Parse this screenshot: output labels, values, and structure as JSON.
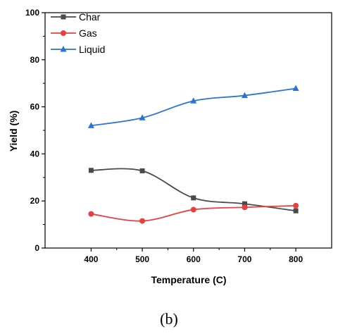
{
  "chart_data": {
    "type": "line",
    "x": [
      400,
      500,
      600,
      700,
      800
    ],
    "series": [
      {
        "name": "Char",
        "values": [
          33.0,
          32.8,
          21.3,
          18.8,
          15.8
        ],
        "color": "#4a4a4a",
        "marker": "square"
      },
      {
        "name": "Gas",
        "values": [
          14.5,
          11.5,
          16.3,
          17.3,
          18.0
        ],
        "color": "#e8403f",
        "marker": "circle"
      },
      {
        "name": "Liquid",
        "values": [
          52.0,
          55.3,
          62.5,
          64.8,
          67.8
        ],
        "color": "#2b73d6",
        "marker": "triangle"
      }
    ],
    "xlabel": "Temperature (C)",
    "ylabel": "Yield (%)",
    "xlim": [
      310,
      870
    ],
    "ylim": [
      0,
      100
    ],
    "xticks": [
      400,
      500,
      600,
      700,
      800
    ],
    "yticks": [
      0,
      20,
      40,
      60,
      80,
      100
    ],
    "legend": "top-left",
    "grid": false,
    "caption": "(b)"
  }
}
